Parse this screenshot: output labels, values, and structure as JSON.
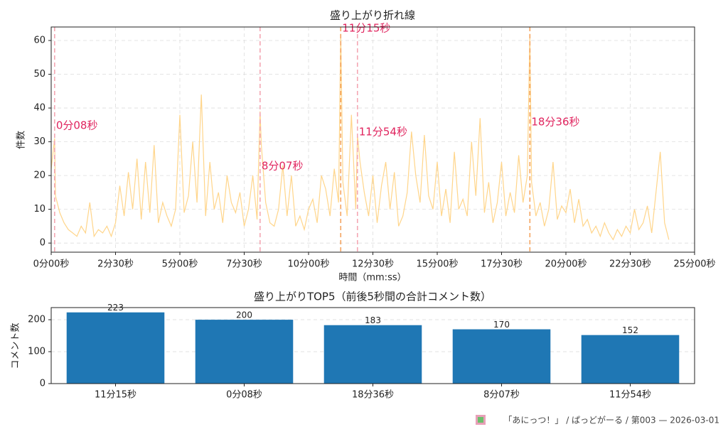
{
  "chart_data": [
    {
      "type": "line",
      "title": "盛り上がり折れ線",
      "xlabel": "時間（mm:ss）",
      "ylabel": "件数",
      "color": "#ffd58a",
      "grid": true,
      "xlim": [
        0,
        1500
      ],
      "ylim": [
        -2.7,
        64
      ],
      "xticks": [
        {
          "value": 0,
          "label": "0分00秒"
        },
        {
          "value": 150,
          "label": "2分30秒"
        },
        {
          "value": 300,
          "label": "5分00秒"
        },
        {
          "value": 450,
          "label": "7分30秒"
        },
        {
          "value": 600,
          "label": "10分00秒"
        },
        {
          "value": 750,
          "label": "12分30秒"
        },
        {
          "value": 900,
          "label": "15分00秒"
        },
        {
          "value": 1050,
          "label": "17分30秒"
        },
        {
          "value": 1200,
          "label": "20分00秒"
        },
        {
          "value": 1350,
          "label": "22分30秒"
        },
        {
          "value": 1500,
          "label": "25分00秒"
        }
      ],
      "yticks": [
        0,
        10,
        20,
        30,
        40,
        50,
        60
      ],
      "x": [
        0,
        8,
        10,
        20,
        30,
        40,
        50,
        60,
        70,
        80,
        90,
        100,
        110,
        120,
        130,
        140,
        150,
        160,
        170,
        180,
        190,
        200,
        210,
        220,
        230,
        240,
        250,
        260,
        270,
        280,
        290,
        300,
        310,
        320,
        330,
        340,
        350,
        360,
        370,
        380,
        390,
        400,
        410,
        420,
        430,
        440,
        450,
        460,
        470,
        480,
        487,
        490,
        500,
        510,
        520,
        530,
        540,
        550,
        560,
        570,
        580,
        590,
        600,
        610,
        620,
        630,
        640,
        650,
        660,
        670,
        675,
        680,
        690,
        700,
        710,
        714,
        720,
        730,
        740,
        750,
        760,
        770,
        780,
        790,
        800,
        810,
        820,
        830,
        840,
        850,
        860,
        870,
        880,
        890,
        900,
        910,
        920,
        930,
        940,
        950,
        960,
        970,
        980,
        990,
        1000,
        1010,
        1020,
        1030,
        1040,
        1050,
        1060,
        1070,
        1080,
        1090,
        1100,
        1110,
        1116,
        1120,
        1130,
        1140,
        1150,
        1160,
        1170,
        1180,
        1190,
        1200,
        1210,
        1220,
        1230,
        1240,
        1250,
        1260,
        1270,
        1280,
        1290,
        1300,
        1310,
        1320,
        1330,
        1340,
        1350,
        1360,
        1370,
        1380,
        1390,
        1400,
        1410,
        1420,
        1430,
        1440
      ],
      "values": [
        22,
        31,
        14,
        9,
        6,
        4,
        3,
        2,
        5,
        3,
        12,
        2,
        4,
        3,
        5,
        2,
        6,
        17,
        8,
        21,
        10,
        25,
        7,
        24,
        9,
        29,
        6,
        12,
        8,
        5,
        10,
        38,
        9,
        14,
        30,
        12,
        44,
        8,
        24,
        10,
        15,
        6,
        20,
        12,
        9,
        15,
        5,
        10,
        20,
        7,
        39,
        29,
        12,
        6,
        5,
        10,
        23,
        8,
        20,
        5,
        8,
        4,
        10,
        13,
        6,
        20,
        16,
        8,
        22,
        12,
        62,
        18,
        8,
        38,
        10,
        32,
        24,
        15,
        8,
        20,
        6,
        17,
        24,
        10,
        21,
        5,
        8,
        15,
        33,
        20,
        12,
        32,
        14,
        10,
        24,
        8,
        16,
        6,
        27,
        10,
        13,
        8,
        30,
        14,
        37,
        9,
        18,
        6,
        12,
        24,
        8,
        15,
        9,
        26,
        12,
        20,
        62,
        18,
        8,
        12,
        5,
        10,
        24,
        7,
        11,
        9,
        16,
        6,
        13,
        5,
        7,
        3,
        5,
        2,
        6,
        3,
        1,
        4,
        2,
        5,
        3,
        10,
        4,
        6,
        11,
        3,
        15,
        27,
        6,
        1
      ],
      "annotations": [
        {
          "x": 8,
          "text": "0分08秒",
          "color": "#f4a7b3"
        },
        {
          "x": 487,
          "text": "8分07秒",
          "color": "#f4a7b3"
        },
        {
          "x": 675,
          "text": "11分15秒",
          "color": "#f4a460"
        },
        {
          "x": 714,
          "text": "11分54秒",
          "color": "#f4a7b3"
        },
        {
          "x": 1116,
          "text": "18分36秒",
          "color": "#f4a460"
        }
      ],
      "annotation_text_color": "#e0245e"
    },
    {
      "type": "bar",
      "title": "盛り上がりTOP5（前後5秒間の合計コメント数）",
      "ylabel": "コメント数",
      "color": "#1f77b4",
      "grid": true,
      "categories": [
        "11分15秒",
        "0分08秒",
        "18分36秒",
        "8分07秒",
        "11分54秒"
      ],
      "values": [
        223,
        200,
        183,
        170,
        152
      ],
      "ylim": [
        0,
        238
      ],
      "yticks": [
        0,
        100,
        200
      ]
    }
  ],
  "footer": "「あにっつ！」 / ぱっどがーる / 第003 — 2026-03-01"
}
